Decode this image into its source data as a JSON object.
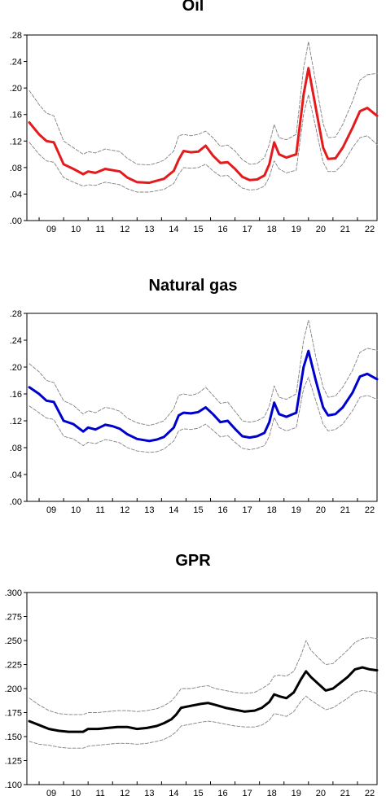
{
  "chart_data": [
    {
      "type": "line",
      "title": "Oil",
      "x": [
        2008.6,
        2009.0,
        2009.3,
        2009.6,
        2010.0,
        2010.4,
        2010.8,
        2011.0,
        2011.3,
        2011.7,
        2012.0,
        2012.3,
        2012.6,
        2013.0,
        2013.5,
        2013.8,
        2014.1,
        2014.5,
        2014.7,
        2014.9,
        2015.2,
        2015.5,
        2015.8,
        2016.1,
        2016.4,
        2016.7,
        2017.0,
        2017.3,
        2017.6,
        2017.9,
        2018.2,
        2018.4,
        2018.6,
        2018.8,
        2019.1,
        2019.5,
        2019.8,
        2020.0,
        2020.3,
        2020.6,
        2020.8,
        2021.1,
        2021.4,
        2021.8,
        2022.1,
        2022.4,
        2022.8
      ],
      "series": [
        {
          "color": "#e41a1c",
          "role": "estimate",
          "values": [
            0.148,
            0.13,
            0.12,
            0.118,
            0.085,
            0.078,
            0.07,
            0.074,
            0.072,
            0.078,
            0.076,
            0.074,
            0.065,
            0.058,
            0.057,
            0.06,
            0.063,
            0.075,
            0.092,
            0.105,
            0.103,
            0.104,
            0.113,
            0.098,
            0.087,
            0.088,
            0.078,
            0.066,
            0.061,
            0.062,
            0.068,
            0.085,
            0.118,
            0.1,
            0.095,
            0.1,
            0.19,
            0.23,
            0.17,
            0.11,
            0.093,
            0.094,
            0.11,
            0.14,
            0.165,
            0.17,
            0.158
          ]
        },
        {
          "color": "#808080",
          "role": "upper band",
          "dashed": true,
          "values": [
            0.196,
            0.175,
            0.162,
            0.158,
            0.12,
            0.11,
            0.1,
            0.104,
            0.102,
            0.108,
            0.106,
            0.104,
            0.094,
            0.085,
            0.084,
            0.087,
            0.091,
            0.105,
            0.128,
            0.13,
            0.128,
            0.13,
            0.135,
            0.125,
            0.112,
            0.114,
            0.105,
            0.092,
            0.085,
            0.086,
            0.095,
            0.115,
            0.145,
            0.125,
            0.122,
            0.13,
            0.23,
            0.27,
            0.208,
            0.146,
            0.125,
            0.126,
            0.145,
            0.18,
            0.212,
            0.22,
            0.222
          ]
        },
        {
          "color": "#808080",
          "role": "lower band",
          "dashed": true,
          "values": [
            0.118,
            0.1,
            0.09,
            0.088,
            0.065,
            0.058,
            0.052,
            0.054,
            0.053,
            0.058,
            0.056,
            0.054,
            0.048,
            0.043,
            0.043,
            0.045,
            0.047,
            0.056,
            0.07,
            0.08,
            0.079,
            0.08,
            0.085,
            0.075,
            0.067,
            0.068,
            0.058,
            0.049,
            0.046,
            0.047,
            0.052,
            0.066,
            0.09,
            0.078,
            0.072,
            0.076,
            0.16,
            0.19,
            0.14,
            0.088,
            0.074,
            0.074,
            0.085,
            0.11,
            0.125,
            0.128,
            0.115
          ]
        }
      ],
      "ylim": [
        0.0,
        0.28
      ],
      "yticks": [
        ".00",
        ".04",
        ".08",
        ".12",
        ".16",
        ".20",
        ".24",
        ".28"
      ],
      "xlim": [
        2008.5,
        2022.8
      ],
      "xticks": [
        "09",
        "10",
        "11",
        "12",
        "13",
        "14",
        "15",
        "16",
        "17",
        "18",
        "19",
        "20",
        "21",
        "22"
      ],
      "grid": false,
      "legend": "none"
    },
    {
      "type": "line",
      "title": "Natural gas",
      "x": [
        2008.6,
        2009.0,
        2009.3,
        2009.6,
        2010.0,
        2010.4,
        2010.8,
        2011.0,
        2011.3,
        2011.7,
        2012.0,
        2012.3,
        2012.6,
        2013.0,
        2013.5,
        2013.8,
        2014.1,
        2014.5,
        2014.7,
        2014.9,
        2015.2,
        2015.5,
        2015.8,
        2016.1,
        2016.4,
        2016.7,
        2017.0,
        2017.3,
        2017.6,
        2017.9,
        2018.2,
        2018.4,
        2018.6,
        2018.8,
        2019.1,
        2019.5,
        2019.8,
        2020.0,
        2020.3,
        2020.6,
        2020.8,
        2021.1,
        2021.4,
        2021.8,
        2022.1,
        2022.4,
        2022.8
      ],
      "series": [
        {
          "color": "#0000cc",
          "role": "estimate",
          "values": [
            0.17,
            0.16,
            0.15,
            0.148,
            0.12,
            0.115,
            0.104,
            0.11,
            0.107,
            0.114,
            0.112,
            0.108,
            0.1,
            0.093,
            0.09,
            0.092,
            0.096,
            0.11,
            0.128,
            0.132,
            0.131,
            0.133,
            0.14,
            0.13,
            0.118,
            0.12,
            0.108,
            0.097,
            0.095,
            0.097,
            0.102,
            0.118,
            0.147,
            0.13,
            0.126,
            0.132,
            0.2,
            0.224,
            0.18,
            0.14,
            0.128,
            0.13,
            0.14,
            0.162,
            0.186,
            0.19,
            0.182
          ]
        },
        {
          "color": "#808080",
          "role": "upper band",
          "dashed": true,
          "values": [
            0.205,
            0.193,
            0.18,
            0.177,
            0.15,
            0.143,
            0.13,
            0.135,
            0.132,
            0.14,
            0.138,
            0.134,
            0.124,
            0.117,
            0.113,
            0.116,
            0.12,
            0.138,
            0.158,
            0.16,
            0.158,
            0.161,
            0.17,
            0.158,
            0.146,
            0.148,
            0.134,
            0.12,
            0.118,
            0.12,
            0.126,
            0.142,
            0.172,
            0.155,
            0.152,
            0.16,
            0.24,
            0.27,
            0.215,
            0.17,
            0.155,
            0.157,
            0.17,
            0.195,
            0.222,
            0.228,
            0.225
          ]
        },
        {
          "color": "#808080",
          "role": "lower band",
          "dashed": true,
          "values": [
            0.142,
            0.132,
            0.124,
            0.122,
            0.097,
            0.093,
            0.083,
            0.088,
            0.086,
            0.092,
            0.09,
            0.087,
            0.08,
            0.075,
            0.073,
            0.074,
            0.078,
            0.09,
            0.105,
            0.108,
            0.107,
            0.109,
            0.115,
            0.106,
            0.096,
            0.098,
            0.088,
            0.079,
            0.077,
            0.079,
            0.083,
            0.097,
            0.125,
            0.11,
            0.105,
            0.11,
            0.168,
            0.185,
            0.15,
            0.115,
            0.105,
            0.107,
            0.115,
            0.135,
            0.155,
            0.158,
            0.152
          ]
        }
      ],
      "ylim": [
        0.0,
        0.28
      ],
      "yticks": [
        ".00",
        ".04",
        ".08",
        ".12",
        ".16",
        ".20",
        ".24",
        ".28"
      ],
      "xlim": [
        2008.5,
        2022.8
      ],
      "xticks": [
        "09",
        "10",
        "11",
        "12",
        "13",
        "14",
        "15",
        "16",
        "17",
        "18",
        "19",
        "20",
        "21",
        "22"
      ],
      "grid": false,
      "legend": "none"
    },
    {
      "type": "line",
      "title": "GPR",
      "x": [
        2008.6,
        2009.0,
        2009.4,
        2009.8,
        2010.2,
        2010.6,
        2010.8,
        2011.0,
        2011.4,
        2011.8,
        2012.2,
        2012.6,
        2013.0,
        2013.4,
        2013.8,
        2014.1,
        2014.4,
        2014.6,
        2014.8,
        2015.2,
        2015.6,
        2015.9,
        2016.2,
        2016.6,
        2017.0,
        2017.4,
        2017.8,
        2018.1,
        2018.4,
        2018.6,
        2018.8,
        2019.1,
        2019.4,
        2019.7,
        2019.9,
        2020.1,
        2020.4,
        2020.7,
        2021.0,
        2021.3,
        2021.6,
        2021.9,
        2022.2,
        2022.5,
        2022.8
      ],
      "series": [
        {
          "color": "#000000",
          "role": "estimate",
          "values": [
            0.166,
            0.162,
            0.158,
            0.156,
            0.155,
            0.155,
            0.155,
            0.158,
            0.158,
            0.159,
            0.16,
            0.16,
            0.158,
            0.159,
            0.161,
            0.164,
            0.168,
            0.173,
            0.18,
            0.182,
            0.184,
            0.185,
            0.183,
            0.18,
            0.178,
            0.176,
            0.177,
            0.18,
            0.186,
            0.194,
            0.192,
            0.19,
            0.196,
            0.21,
            0.218,
            0.212,
            0.205,
            0.198,
            0.2,
            0.206,
            0.212,
            0.22,
            0.222,
            0.22,
            0.219
          ]
        },
        {
          "color": "#808080",
          "role": "upper band",
          "dashed": true,
          "values": [
            0.19,
            0.183,
            0.177,
            0.174,
            0.173,
            0.173,
            0.173,
            0.175,
            0.175,
            0.176,
            0.177,
            0.177,
            0.176,
            0.177,
            0.179,
            0.182,
            0.187,
            0.193,
            0.2,
            0.2,
            0.202,
            0.203,
            0.2,
            0.198,
            0.196,
            0.195,
            0.196,
            0.2,
            0.205,
            0.213,
            0.214,
            0.213,
            0.218,
            0.235,
            0.25,
            0.24,
            0.232,
            0.225,
            0.226,
            0.233,
            0.24,
            0.248,
            0.252,
            0.253,
            0.252
          ]
        },
        {
          "color": "#808080",
          "role": "lower band",
          "dashed": true,
          "values": [
            0.145,
            0.142,
            0.141,
            0.139,
            0.138,
            0.138,
            0.138,
            0.14,
            0.141,
            0.142,
            0.143,
            0.143,
            0.142,
            0.143,
            0.145,
            0.147,
            0.151,
            0.155,
            0.161,
            0.163,
            0.165,
            0.166,
            0.165,
            0.163,
            0.161,
            0.16,
            0.16,
            0.162,
            0.167,
            0.174,
            0.173,
            0.171,
            0.176,
            0.187,
            0.192,
            0.188,
            0.183,
            0.178,
            0.18,
            0.185,
            0.19,
            0.196,
            0.198,
            0.197,
            0.195
          ]
        }
      ],
      "ylim": [
        0.1,
        0.3
      ],
      "yticks": [
        ".100",
        ".125",
        ".150",
        ".175",
        ".200",
        ".225",
        ".250",
        ".275",
        ".300"
      ],
      "xlim": [
        2008.5,
        2022.8
      ],
      "xticks": [
        "09",
        "10",
        "11",
        "12",
        "13",
        "14",
        "15",
        "16",
        "17",
        "18",
        "19",
        "20",
        "21",
        "22"
      ],
      "grid": false,
      "legend": "none"
    }
  ]
}
